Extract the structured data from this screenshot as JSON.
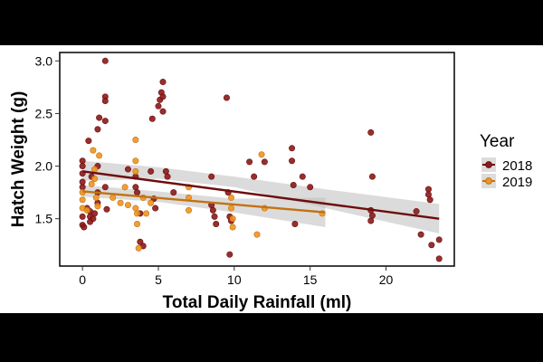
{
  "chart_data": {
    "type": "scatter",
    "xlabel": "Total Daily Rainfall (ml)",
    "ylabel": "Hatch Weight (g)",
    "xlim": [
      -1.5,
      24.5
    ],
    "ylim": [
      1.05,
      3.08
    ],
    "x_ticks": [
      0,
      5,
      10,
      15,
      20
    ],
    "y_ticks": [
      1.5,
      2.0,
      2.5,
      3.0
    ],
    "x_tick_labels": [
      "0",
      "5",
      "10",
      "15",
      "20"
    ],
    "y_tick_labels": [
      "1.5",
      "2.0",
      "2.5",
      "3.0"
    ],
    "grid": false,
    "legend_title": "Year",
    "legend_position": "right",
    "series": [
      {
        "name": "2018",
        "color": "#8b1a1a",
        "line_color": "#6e0d0d",
        "trend": {
          "x_start": 0,
          "y_start": 1.95,
          "x_end": 23.5,
          "y_end": 1.5
        },
        "band": {
          "lower": [
            1.86,
            1.88,
            1.8,
            1.6,
            1.36
          ],
          "upper": [
            2.05,
            1.99,
            1.9,
            1.78,
            1.64
          ],
          "x": [
            0,
            5,
            10,
            16,
            23.5
          ]
        },
        "points": [
          [
            0,
            1.44
          ],
          [
            0,
            1.52
          ],
          [
            0,
            1.8
          ],
          [
            0,
            1.85
          ],
          [
            0,
            1.93
          ],
          [
            0,
            2.0
          ],
          [
            0,
            2.05
          ],
          [
            0.1,
            1.42
          ],
          [
            0.3,
            1.6
          ],
          [
            0.4,
            2.24
          ],
          [
            0.5,
            1.47
          ],
          [
            0.5,
            1.52
          ],
          [
            0.5,
            1.57
          ],
          [
            0.6,
            1.9
          ],
          [
            0.7,
            1.5
          ],
          [
            0.8,
            1.55
          ],
          [
            1.0,
            2.35
          ],
          [
            1.0,
            2.0
          ],
          [
            1.0,
            1.75
          ],
          [
            1.0,
            1.65
          ],
          [
            1.1,
            2.46
          ],
          [
            1.5,
            3.0
          ],
          [
            1.5,
            2.66
          ],
          [
            1.5,
            2.62
          ],
          [
            1.5,
            2.43
          ],
          [
            1.5,
            1.8
          ],
          [
            1.6,
            1.59
          ],
          [
            3.0,
            1.97
          ],
          [
            3.5,
            1.9
          ],
          [
            3.5,
            1.8
          ],
          [
            3.6,
            1.75
          ],
          [
            3.8,
            1.55
          ],
          [
            3.8,
            1.28
          ],
          [
            4.0,
            1.24
          ],
          [
            4.5,
            1.95
          ],
          [
            4.6,
            2.45
          ],
          [
            4.7,
            1.69
          ],
          [
            4.8,
            1.6
          ],
          [
            5.0,
            2.57
          ],
          [
            5.1,
            2.63
          ],
          [
            5.2,
            2.7
          ],
          [
            5.3,
            2.8
          ],
          [
            5.3,
            2.52
          ],
          [
            5.3,
            2.66
          ],
          [
            5.5,
            1.95
          ],
          [
            5.6,
            1.9
          ],
          [
            6.0,
            1.75
          ],
          [
            8.5,
            1.9
          ],
          [
            8.5,
            1.63
          ],
          [
            8.6,
            1.58
          ],
          [
            8.7,
            1.52
          ],
          [
            8.8,
            1.45
          ],
          [
            9.5,
            2.65
          ],
          [
            9.6,
            1.75
          ],
          [
            9.7,
            1.52
          ],
          [
            9.7,
            1.16
          ],
          [
            9.8,
            1.48
          ],
          [
            11.0,
            2.04
          ],
          [
            11.3,
            1.9
          ],
          [
            12.0,
            2.04
          ],
          [
            13.8,
            2.17
          ],
          [
            13.8,
            2.05
          ],
          [
            13.9,
            1.82
          ],
          [
            14.0,
            1.45
          ],
          [
            14.5,
            1.9
          ],
          [
            15.0,
            1.8
          ],
          [
            19.0,
            2.32
          ],
          [
            19.1,
            1.9
          ],
          [
            19.0,
            1.58
          ],
          [
            19.1,
            1.53
          ],
          [
            19.0,
            1.48
          ],
          [
            22.0,
            1.57
          ],
          [
            22.3,
            1.35
          ],
          [
            22.8,
            1.78
          ],
          [
            22.8,
            1.73
          ],
          [
            22.9,
            1.68
          ],
          [
            23.0,
            1.25
          ],
          [
            23.5,
            1.3
          ],
          [
            23.5,
            1.12
          ]
        ]
      },
      {
        "name": "2019",
        "color": "#f0951e",
        "line_color": "#c27212",
        "trend": {
          "x_start": 0,
          "y_start": 1.76,
          "x_end": 16,
          "y_end": 1.56
        },
        "band": {
          "lower": [
            1.71,
            1.66,
            1.56,
            1.42
          ],
          "upper": [
            1.82,
            1.76,
            1.69,
            1.7
          ],
          "x": [
            0,
            5,
            10,
            16
          ]
        },
        "points": [
          [
            0,
            1.6
          ],
          [
            0,
            1.68
          ],
          [
            0,
            1.75
          ],
          [
            0.3,
            1.58
          ],
          [
            0.6,
            1.83
          ],
          [
            0.7,
            2.15
          ],
          [
            0.8,
            1.97
          ],
          [
            0.8,
            1.88
          ],
          [
            0.9,
            1.7
          ],
          [
            1.0,
            1.62
          ],
          [
            1.1,
            2.1
          ],
          [
            2.0,
            1.7
          ],
          [
            2.5,
            1.65
          ],
          [
            2.8,
            1.8
          ],
          [
            3.0,
            1.63
          ],
          [
            3.5,
            2.25
          ],
          [
            3.5,
            2.05
          ],
          [
            3.5,
            1.95
          ],
          [
            3.5,
            1.6
          ],
          [
            3.6,
            1.55
          ],
          [
            3.6,
            1.45
          ],
          [
            3.7,
            1.22
          ],
          [
            4.0,
            1.7
          ],
          [
            4.2,
            1.55
          ],
          [
            4.5,
            1.65
          ],
          [
            7.0,
            1.8
          ],
          [
            7.0,
            1.7
          ],
          [
            7.0,
            1.58
          ],
          [
            9.8,
            1.7
          ],
          [
            9.8,
            1.6
          ],
          [
            9.9,
            1.5
          ],
          [
            9.9,
            1.42
          ],
          [
            11.8,
            2.11
          ],
          [
            11.5,
            1.35
          ],
          [
            12.0,
            1.6
          ],
          [
            15.8,
            1.55
          ]
        ]
      }
    ]
  }
}
